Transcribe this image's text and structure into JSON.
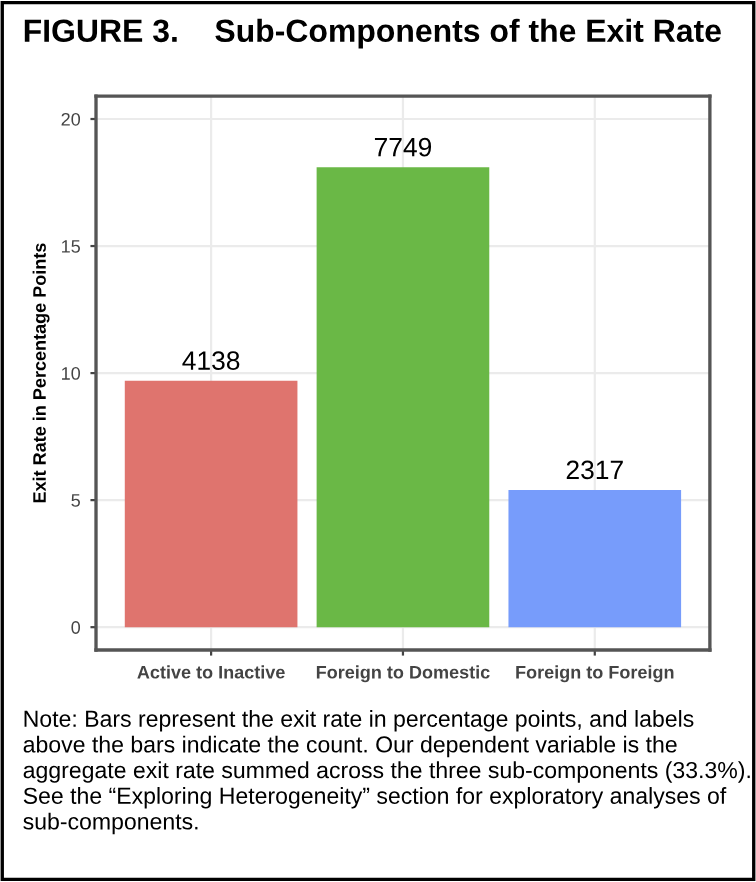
{
  "chart_data": {
    "type": "bar",
    "title": "FIGURE 3.    Sub-Components of the Exit Rate",
    "ylabel": "Exit Rate in Percentage Points",
    "categories": [
      "Active to Inactive",
      "Foreign to Domestic",
      "Foreign to Foreign"
    ],
    "values": [
      9.7,
      18.1,
      5.4
    ],
    "colors": [
      "#df746e",
      "#6ab846",
      "#779cfb"
    ],
    "ylim": [
      -0.9,
      20.9
    ],
    "yticks": [
      0,
      5,
      10,
      15,
      20
    ],
    "grid": true,
    "legend": false,
    "annotations": [
      {
        "text": "4138",
        "x": "Active to Inactive",
        "y": 9.7
      },
      {
        "text": "7749",
        "x": "Foreign to Domestic",
        "y": 18.1
      },
      {
        "text": "2317",
        "x": "Foreign to Foreign",
        "y": 5.4
      },
      "Note: Bars represent the exit rate in percentage points, and labels above the bars indicate the count. Our dependent variable is the aggregate exit rate summed across the three sub-components (33.3%). See the “Exploring Heterogeneity” section for exploratory analyses of sub-components."
    ]
  }
}
